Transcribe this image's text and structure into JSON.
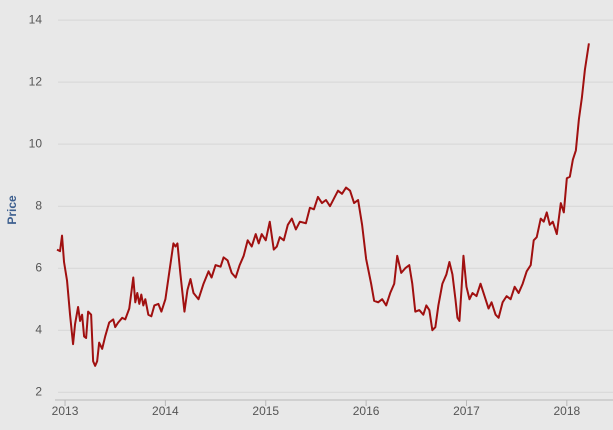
{
  "chart_data": {
    "type": "line",
    "y_label": "Price",
    "color": "#a01010",
    "grid": true,
    "xlim": [
      2012.9,
      2018.46
    ],
    "xticks": [
      2013,
      2014,
      2015,
      2016,
      2017,
      2018
    ],
    "ylim": [
      1.75,
      14.65
    ],
    "yticks": [
      2,
      4,
      6,
      8,
      10,
      12,
      14
    ],
    "x": [
      2012.92,
      2012.95,
      2012.97,
      2012.99,
      2013.02,
      2013.05,
      2013.08,
      2013.1,
      2013.13,
      2013.15,
      2013.17,
      2013.19,
      2013.21,
      2013.23,
      2013.26,
      2013.28,
      2013.3,
      2013.32,
      2013.34,
      2013.37,
      2013.4,
      2013.44,
      2013.48,
      2013.5,
      2013.53,
      2013.57,
      2013.6,
      2013.64,
      2013.68,
      2013.7,
      2013.72,
      2013.74,
      2013.76,
      2013.78,
      2013.8,
      2013.83,
      2013.86,
      2013.89,
      2013.93,
      2013.96,
      2014.0,
      2014.04,
      2014.08,
      2014.1,
      2014.12,
      2014.15,
      2014.19,
      2014.22,
      2014.25,
      2014.28,
      2014.33,
      2014.38,
      2014.43,
      2014.46,
      2014.5,
      2014.55,
      2014.58,
      2014.62,
      2014.66,
      2014.7,
      2014.74,
      2014.78,
      2014.82,
      2014.86,
      2014.9,
      2014.93,
      2014.96,
      2015.0,
      2015.04,
      2015.08,
      2015.11,
      2015.14,
      2015.18,
      2015.22,
      2015.26,
      2015.3,
      2015.34,
      2015.4,
      2015.44,
      2015.48,
      2015.52,
      2015.56,
      2015.6,
      2015.64,
      2015.68,
      2015.72,
      2015.76,
      2015.8,
      2015.84,
      2015.88,
      2015.92,
      2015.96,
      2016.0,
      2016.05,
      2016.08,
      2016.12,
      2016.16,
      2016.2,
      2016.24,
      2016.28,
      2016.31,
      2016.35,
      2016.39,
      2016.43,
      2016.46,
      2016.49,
      2016.53,
      2016.57,
      2016.6,
      2016.63,
      2016.66,
      2016.69,
      2016.72,
      2016.76,
      2016.8,
      2016.83,
      2016.86,
      2016.89,
      2016.91,
      2016.93,
      2016.95,
      2016.97,
      2017.0,
      2017.03,
      2017.06,
      2017.1,
      2017.14,
      2017.18,
      2017.22,
      2017.25,
      2017.29,
      2017.32,
      2017.36,
      2017.4,
      2017.44,
      2017.48,
      2017.52,
      2017.56,
      2017.6,
      2017.64,
      2017.67,
      2017.7,
      2017.74,
      2017.77,
      2017.8,
      2017.83,
      2017.86,
      2017.9,
      2017.94,
      2017.97,
      2018.0,
      2018.03,
      2018.06,
      2018.09,
      2018.12,
      2018.15,
      2018.18,
      2018.22
    ],
    "values": [
      6.6,
      6.55,
      7.05,
      6.2,
      5.6,
      4.5,
      3.55,
      4.2,
      4.75,
      4.3,
      4.5,
      3.8,
      3.75,
      4.6,
      4.5,
      3.0,
      2.85,
      3.0,
      3.6,
      3.4,
      3.8,
      4.25,
      4.35,
      4.1,
      4.25,
      4.4,
      4.35,
      4.7,
      5.7,
      4.9,
      5.2,
      4.85,
      5.15,
      4.8,
      5.0,
      4.5,
      4.45,
      4.8,
      4.85,
      4.6,
      5.0,
      5.9,
      6.8,
      6.7,
      6.8,
      5.8,
      4.6,
      5.3,
      5.65,
      5.2,
      5.0,
      5.5,
      5.9,
      5.7,
      6.1,
      6.05,
      6.35,
      6.25,
      5.85,
      5.7,
      6.1,
      6.4,
      6.9,
      6.7,
      7.1,
      6.8,
      7.1,
      6.9,
      7.5,
      6.6,
      6.7,
      7.0,
      6.9,
      7.4,
      7.6,
      7.25,
      7.5,
      7.45,
      7.95,
      7.9,
      8.3,
      8.1,
      8.2,
      8.0,
      8.25,
      8.5,
      8.4,
      8.6,
      8.5,
      8.1,
      8.2,
      7.4,
      6.3,
      5.5,
      4.95,
      4.9,
      5.0,
      4.8,
      5.2,
      5.5,
      6.4,
      5.85,
      6.0,
      6.1,
      5.5,
      4.6,
      4.65,
      4.5,
      4.8,
      4.65,
      4.0,
      4.1,
      4.8,
      5.5,
      5.8,
      6.2,
      5.8,
      5.0,
      4.4,
      4.3,
      5.3,
      6.4,
      5.4,
      5.0,
      5.2,
      5.1,
      5.5,
      5.1,
      4.7,
      4.9,
      4.5,
      4.4,
      4.9,
      5.1,
      5.0,
      5.4,
      5.2,
      5.5,
      5.9,
      6.1,
      6.9,
      7.0,
      7.6,
      7.5,
      7.8,
      7.4,
      7.5,
      7.1,
      8.1,
      7.8,
      8.9,
      8.95,
      9.5,
      9.8,
      10.8,
      11.5,
      12.4,
      13.25
    ]
  }
}
